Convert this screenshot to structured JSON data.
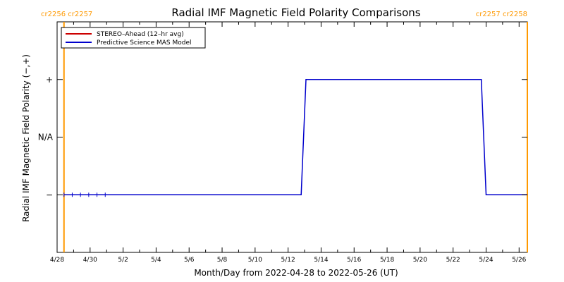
{
  "chart_data": {
    "type": "line",
    "title": "Radial IMF Magnetic Field Polarity Comparisons",
    "xlabel": "Month/Day from 2022-04-28 to 2022-05-26 (UT)",
    "ylabel": "Radial IMF Magnetic Field Polarity (−,+)",
    "x_ticks": [
      "4/28",
      "4/30",
      "5/2",
      "5/4",
      "5/6",
      "5/8",
      "5/10",
      "5/12",
      "5/14",
      "5/16",
      "5/18",
      "5/20",
      "5/22",
      "5/24",
      "5/26"
    ],
    "y_ticks": [
      "−",
      "N/A",
      "+"
    ],
    "y_scale_note": "categorical polarity: -1 = −, 0 = N/A, +1 = +",
    "xlim": [
      "2022-04-28T00:00",
      "2022-05-26T12:00"
    ],
    "ylim": [
      -2,
      2
    ],
    "grid": false,
    "legend_position": "top-left",
    "series": [
      {
        "name": "STEREO–Ahead (12–hr avg)",
        "color": "#cc0000",
        "points": [
          [
            "2022-04-28T10:00",
            -1
          ],
          [
            "2022-04-28T22:00",
            -1
          ],
          [
            "2022-04-29T10:00",
            -1
          ],
          [
            "2022-04-29T22:00",
            -1
          ],
          [
            "2022-04-30T10:00",
            -1
          ],
          [
            "2022-04-30T22:00",
            -1
          ]
        ]
      },
      {
        "name": "Predictive Science MAS Model",
        "color": "#0000cc",
        "points": [
          [
            "2022-04-28T10:00",
            -1
          ],
          [
            "2022-05-12T19:00",
            -1
          ],
          [
            "2022-05-13T02:00",
            1
          ],
          [
            "2022-05-23T17:00",
            1
          ],
          [
            "2022-05-24T00:00",
            -1
          ],
          [
            "2022-05-26T12:00",
            -1
          ]
        ]
      }
    ],
    "vertical_markers": [
      {
        "date": "2022-04-28T10:00",
        "color": "#ff9900"
      },
      {
        "date": "2022-05-26T12:00",
        "color": "#ff9900"
      }
    ],
    "carrington_labels": {
      "left": "cr2256 cr2257",
      "right": "cr2257 cr2258",
      "color": "#ff9900"
    }
  }
}
